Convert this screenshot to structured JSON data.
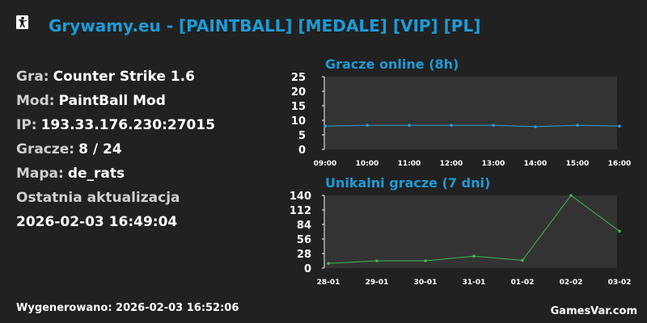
{
  "header": {
    "icon": "counter-strike-icon",
    "title": "Grywamy.eu - [PAINTBALL] [MEDALE] [VIP] [PL]"
  },
  "info": {
    "game_label": "Gra:",
    "game_value": "Counter Strike 1.6",
    "mod_label": "Mod:",
    "mod_value": "PaintBall Mod",
    "ip_label": "IP:",
    "ip_value": "193.33.176.230:27015",
    "players_label": "Gracze:",
    "players_value": "8 / 24",
    "map_label": "Mapa:",
    "map_value": "de_rats",
    "update_label": "Ostatnia aktualizacja",
    "update_value": "2026-02-03 16:49:04"
  },
  "footer": {
    "generated": "Wygenerowano: 2026-02-03 16:52:06",
    "brand": "GamesVar.com"
  },
  "colors": {
    "background": "#212121",
    "plot_bg": "#333333",
    "accent": "#1e9bd6",
    "online_line": "#2d9fd9",
    "unique_line": "#3fb950"
  },
  "chart_data": [
    {
      "type": "line",
      "title": "Gracze online (8h)",
      "categories": [
        "09:00",
        "10:00",
        "11:00",
        "12:00",
        "13:00",
        "14:00",
        "15:00",
        "16:00"
      ],
      "yticks": [
        0,
        5,
        10,
        15,
        20,
        25
      ],
      "ylim": [
        0,
        25
      ],
      "series": [
        {
          "values": [
            8,
            8.3,
            8.3,
            8.3,
            8.3,
            7.8,
            8.3,
            8
          ]
        }
      ]
    },
    {
      "type": "line",
      "title": "Unikalni gracze (7 dni)",
      "categories": [
        "28-01",
        "29-01",
        "30-01",
        "31-01",
        "01-02",
        "02-02",
        "03-02"
      ],
      "yticks": [
        0,
        28,
        56,
        84,
        112,
        140
      ],
      "ylim": [
        0,
        140
      ],
      "series": [
        {
          "values": [
            9,
            14,
            14,
            23,
            15,
            140,
            71
          ]
        }
      ]
    }
  ]
}
